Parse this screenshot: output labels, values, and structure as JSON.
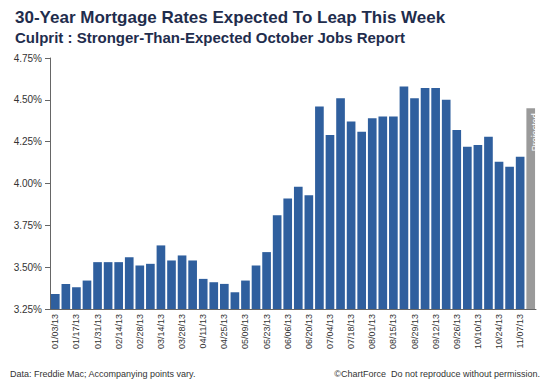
{
  "chart_data": {
    "type": "bar",
    "title": "30-Year Mortgage Rates Expected To Leap This Week",
    "subtitle": "Culprit : Stronger-Than-Expected October Jobs Report",
    "source": "Data: Freddie Mac; Accompanying points vary.",
    "credit": "©ChartForce  Do not reproduce without permission.",
    "annotation": "Projected",
    "categories": [
      "01/03/13",
      null,
      "01/17/13",
      null,
      "01/31/13",
      null,
      "02/14/13",
      null,
      "02/28/13",
      null,
      "03/14/13",
      null,
      "03/28/13",
      null,
      "04/11/13",
      null,
      "04/25/13",
      null,
      "05/09/13",
      null,
      "05/23/13",
      null,
      "06/06/13",
      null,
      "06/20/13",
      null,
      "07/04/13",
      null,
      "07/18/13",
      null,
      "08/01/13",
      null,
      "08/15/13",
      null,
      "08/29/13",
      null,
      "09/12/13",
      null,
      "09/26/13",
      null,
      "10/10/13",
      null,
      "10/24/13",
      null,
      "11/07/13",
      null
    ],
    "values": [
      3.34,
      3.4,
      3.38,
      3.42,
      3.53,
      3.53,
      3.53,
      3.56,
      3.51,
      3.52,
      3.63,
      3.54,
      3.57,
      3.54,
      3.43,
      3.41,
      3.4,
      3.35,
      3.42,
      3.51,
      3.59,
      3.81,
      3.91,
      3.98,
      3.93,
      4.46,
      4.29,
      4.51,
      4.37,
      4.31,
      4.39,
      4.4,
      4.4,
      4.58,
      4.51,
      4.57,
      4.57,
      4.5,
      4.32,
      4.22,
      4.23,
      4.28,
      4.13,
      4.1,
      4.16,
      4.45
    ],
    "colors": [
      "#2f5f9e",
      "#2f5f9e",
      "#2f5f9e",
      "#2f5f9e",
      "#2f5f9e",
      "#2f5f9e",
      "#2f5f9e",
      "#2f5f9e",
      "#2f5f9e",
      "#2f5f9e",
      "#2f5f9e",
      "#2f5f9e",
      "#2f5f9e",
      "#2f5f9e",
      "#2f5f9e",
      "#2f5f9e",
      "#2f5f9e",
      "#2f5f9e",
      "#2f5f9e",
      "#2f5f9e",
      "#2f5f9e",
      "#2f5f9e",
      "#2f5f9e",
      "#2f5f9e",
      "#2f5f9e",
      "#2f5f9e",
      "#2f5f9e",
      "#2f5f9e",
      "#2f5f9e",
      "#2f5f9e",
      "#2f5f9e",
      "#2f5f9e",
      "#2f5f9e",
      "#2f5f9e",
      "#2f5f9e",
      "#2f5f9e",
      "#2f5f9e",
      "#2f5f9e",
      "#2f5f9e",
      "#2f5f9e",
      "#2f5f9e",
      "#2f5f9e",
      "#2f5f9e",
      "#2f5f9e",
      "#2f5f9e",
      "#9a9a9a"
    ],
    "ylim": [
      3.25,
      4.75
    ],
    "yticks": [
      {
        "value": 3.25,
        "label": "3.25%"
      },
      {
        "value": 3.5,
        "label": "3.50%"
      },
      {
        "value": 3.75,
        "label": "3.75%"
      },
      {
        "value": 4.0,
        "label": "4.00%"
      },
      {
        "value": 4.25,
        "label": "4.25%"
      },
      {
        "value": 4.5,
        "label": "4.50%"
      },
      {
        "value": 4.75,
        "label": "4.75%"
      }
    ],
    "grid": false
  }
}
